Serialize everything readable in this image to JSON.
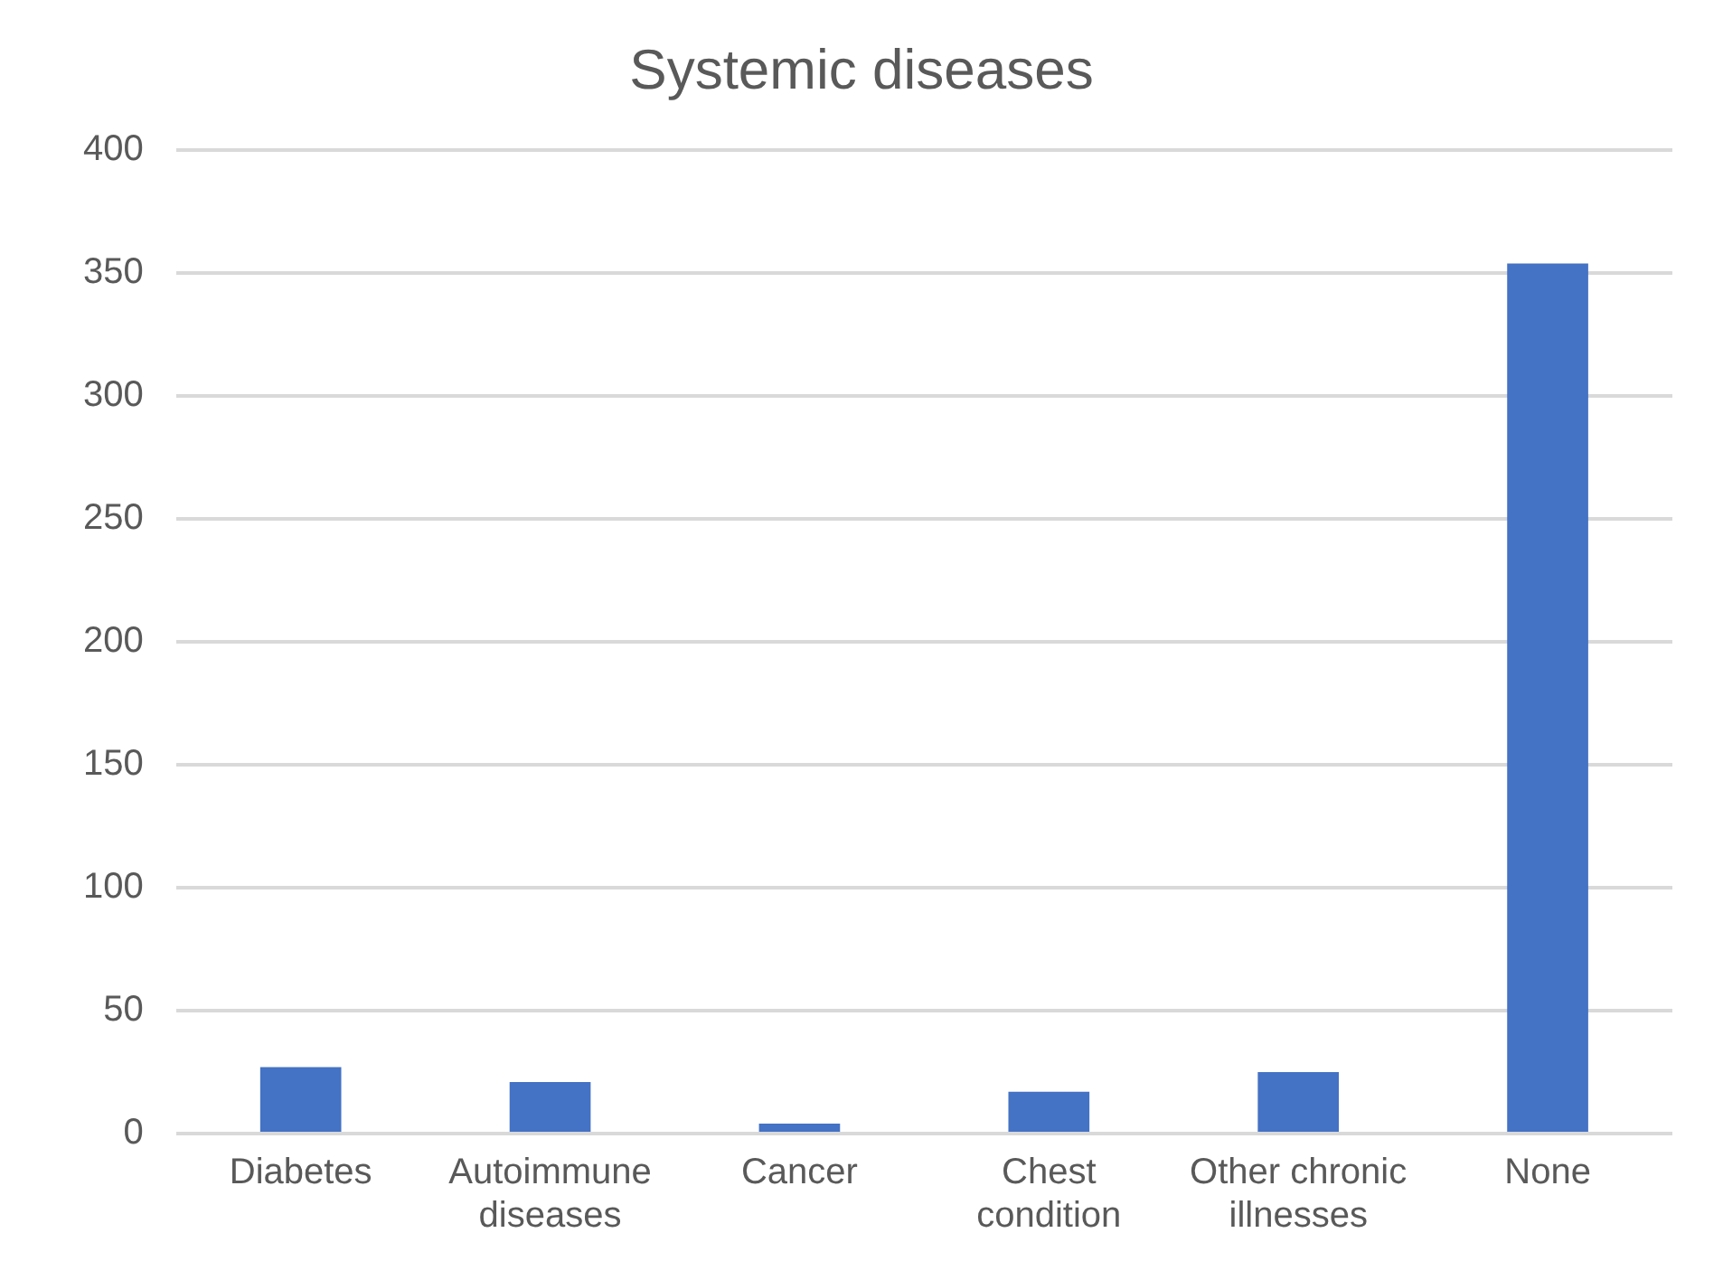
{
  "chart_data": {
    "type": "bar",
    "title": "Systemic diseases",
    "categories": [
      "Diabetes",
      "Autoimmune diseases",
      "Cancer",
      "Chest condition",
      "Other chronic illnesses",
      "None"
    ],
    "values": [
      27,
      21,
      4,
      17,
      25,
      354
    ],
    "color": "#4472c4",
    "ylim": [
      0,
      400
    ],
    "yticks": [
      0,
      50,
      100,
      150,
      200,
      250,
      300,
      350,
      400
    ],
    "grid": "y",
    "legend": false
  }
}
